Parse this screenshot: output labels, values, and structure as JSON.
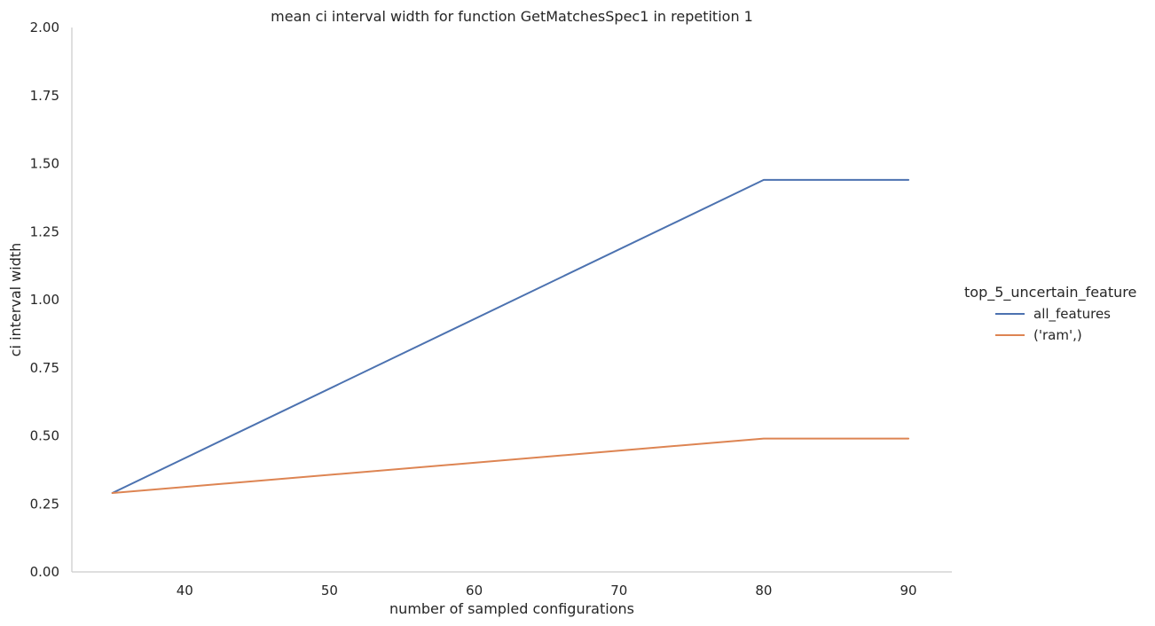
{
  "chart_data": {
    "type": "line",
    "title": "mean ci interval width for function GetMatchesSpec1 in repetition 1",
    "xlabel": "number of sampled configurations",
    "ylabel": "ci interval width",
    "xlim": [
      32.2,
      93.0
    ],
    "ylim": [
      0.0,
      2.0
    ],
    "xticks": [
      40,
      50,
      60,
      70,
      80,
      90
    ],
    "yticks": [
      0.0,
      0.25,
      0.5,
      0.75,
      1.0,
      1.25,
      1.5,
      1.75,
      2.0
    ],
    "xtick_labels": [
      "40",
      "50",
      "60",
      "70",
      "80",
      "90"
    ],
    "ytick_labels": [
      "0.00",
      "0.25",
      "0.50",
      "0.75",
      "1.00",
      "1.25",
      "1.50",
      "1.75",
      "2.00"
    ],
    "grid": false,
    "legend_title": "top_5_uncertain_feature",
    "legend_position": "right",
    "x": [
      35,
      80,
      90
    ],
    "series": [
      {
        "name": "all_features",
        "color": "#4c72b0",
        "values": [
          0.29,
          1.44,
          1.44
        ]
      },
      {
        "name": "('ram',)",
        "color": "#dd8452",
        "values": [
          0.29,
          0.49,
          0.49
        ]
      }
    ]
  }
}
